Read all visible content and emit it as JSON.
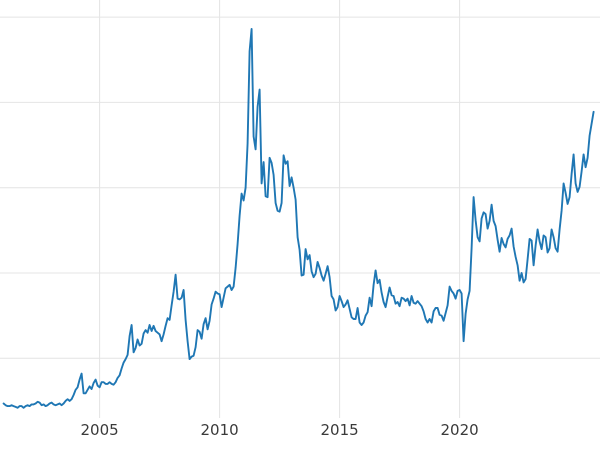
{
  "chart_data": {
    "type": "line",
    "title": "",
    "xlabel": "",
    "ylabel": "",
    "grid": true,
    "legend": "none",
    "background": "#ffffff",
    "line_color": "#1f77b4",
    "grid_color": "#e4e4e4",
    "tick_color": "#3a3a3a",
    "xlim": [
      2000.85,
      2025.85
    ],
    "ylim": [
      3,
      52
    ],
    "x_ticks": [
      {
        "value": 2005,
        "label": "2005"
      },
      {
        "value": 2010,
        "label": "2010"
      },
      {
        "value": 2015,
        "label": "2015"
      },
      {
        "value": 2020,
        "label": "2020"
      }
    ],
    "y_gridlines": [
      10,
      20,
      30,
      40,
      50
    ],
    "series": [
      {
        "name": "",
        "x_start": 2001.0,
        "x_step": 0.0833333,
        "values": [
          4.7,
          4.5,
          4.4,
          4.4,
          4.5,
          4.4,
          4.3,
          4.2,
          4.4,
          4.4,
          4.2,
          4.4,
          4.5,
          4.4,
          4.6,
          4.6,
          4.7,
          4.9,
          4.8,
          4.5,
          4.6,
          4.4,
          4.5,
          4.7,
          4.8,
          4.6,
          4.5,
          4.6,
          4.7,
          4.5,
          4.7,
          5.0,
          5.2,
          5.0,
          5.2,
          5.7,
          6.3,
          6.6,
          7.5,
          8.2,
          5.9,
          5.9,
          6.3,
          6.7,
          6.4,
          7.1,
          7.5,
          6.8,
          6.6,
          7.2,
          7.2,
          7.0,
          7.0,
          7.2,
          7.0,
          6.9,
          7.2,
          7.7,
          8.0,
          8.8,
          9.5,
          9.9,
          10.4,
          12.6,
          13.9,
          10.7,
          11.2,
          12.2,
          11.5,
          11.7,
          12.9,
          13.3,
          13.0,
          13.9,
          13.2,
          13.8,
          13.2,
          13.0,
          12.8,
          12.0,
          12.8,
          13.8,
          14.7,
          14.5,
          16.2,
          17.8,
          19.8,
          17.0,
          16.9,
          17.1,
          18.0,
          14.5,
          12.0,
          9.9,
          10.2,
          10.3,
          11.3,
          13.3,
          13.1,
          12.3,
          14.0,
          14.7,
          13.4,
          14.4,
          16.3,
          17.0,
          17.8,
          17.6,
          17.5,
          16.0,
          17.1,
          18.2,
          18.4,
          18.6,
          18.0,
          18.4,
          20.6,
          23.4,
          26.7,
          29.3,
          28.5,
          30.0,
          35.2,
          46.0,
          48.6,
          36.0,
          34.5,
          39.5,
          41.5,
          30.5,
          33.0,
          29.0,
          28.9,
          33.5,
          32.9,
          31.5,
          28.2,
          27.3,
          27.2,
          28.2,
          33.8,
          32.8,
          33.1,
          30.2,
          31.2,
          30.0,
          28.6,
          24.2,
          22.7,
          19.7,
          19.8,
          22.8,
          21.6,
          22.1,
          20.2,
          19.5,
          19.9,
          21.3,
          20.6,
          19.7,
          19.1,
          19.9,
          20.8,
          19.5,
          17.3,
          16.9,
          15.6,
          16.0,
          17.3,
          16.7,
          16.0,
          16.3,
          16.8,
          15.8,
          14.8,
          14.6,
          14.6,
          15.9,
          14.2,
          13.9,
          14.2,
          15.0,
          15.4,
          17.1,
          16.1,
          18.6,
          20.3,
          18.8,
          19.2,
          17.7,
          16.6,
          16.0,
          17.2,
          18.3,
          17.4,
          17.3,
          16.4,
          16.6,
          16.1,
          17.1,
          17.0,
          16.7,
          17.0,
          16.2,
          17.3,
          16.5,
          16.4,
          16.7,
          16.4,
          16.1,
          15.5,
          14.6,
          14.2,
          14.6,
          14.2,
          15.5,
          15.9,
          15.9,
          15.1,
          15.0,
          14.4,
          15.3,
          16.2,
          18.4,
          17.9,
          17.6,
          17.0,
          17.9,
          18.0,
          17.6,
          12.0,
          15.2,
          16.9,
          17.9,
          22.9,
          28.9,
          26.2,
          24.2,
          23.7,
          26.4,
          27.1,
          26.9,
          25.2,
          26.1,
          28.0,
          26.1,
          25.5,
          23.9,
          22.5,
          24.1,
          23.4,
          23.0,
          24.0,
          24.4,
          25.2,
          23.1,
          21.9,
          20.9,
          19.1,
          20.0,
          18.9,
          19.3,
          21.6,
          24.0,
          23.8,
          20.9,
          23.2,
          25.1,
          23.7,
          22.8,
          24.4,
          24.2,
          22.4,
          22.9,
          25.1,
          24.2,
          22.9,
          22.5,
          25.1,
          27.3,
          30.5,
          29.4,
          28.1,
          28.9,
          31.6,
          33.9,
          30.5,
          29.5,
          30.1,
          31.9,
          33.9,
          32.4,
          33.5,
          36.1,
          37.5,
          38.9
        ]
      }
    ]
  }
}
